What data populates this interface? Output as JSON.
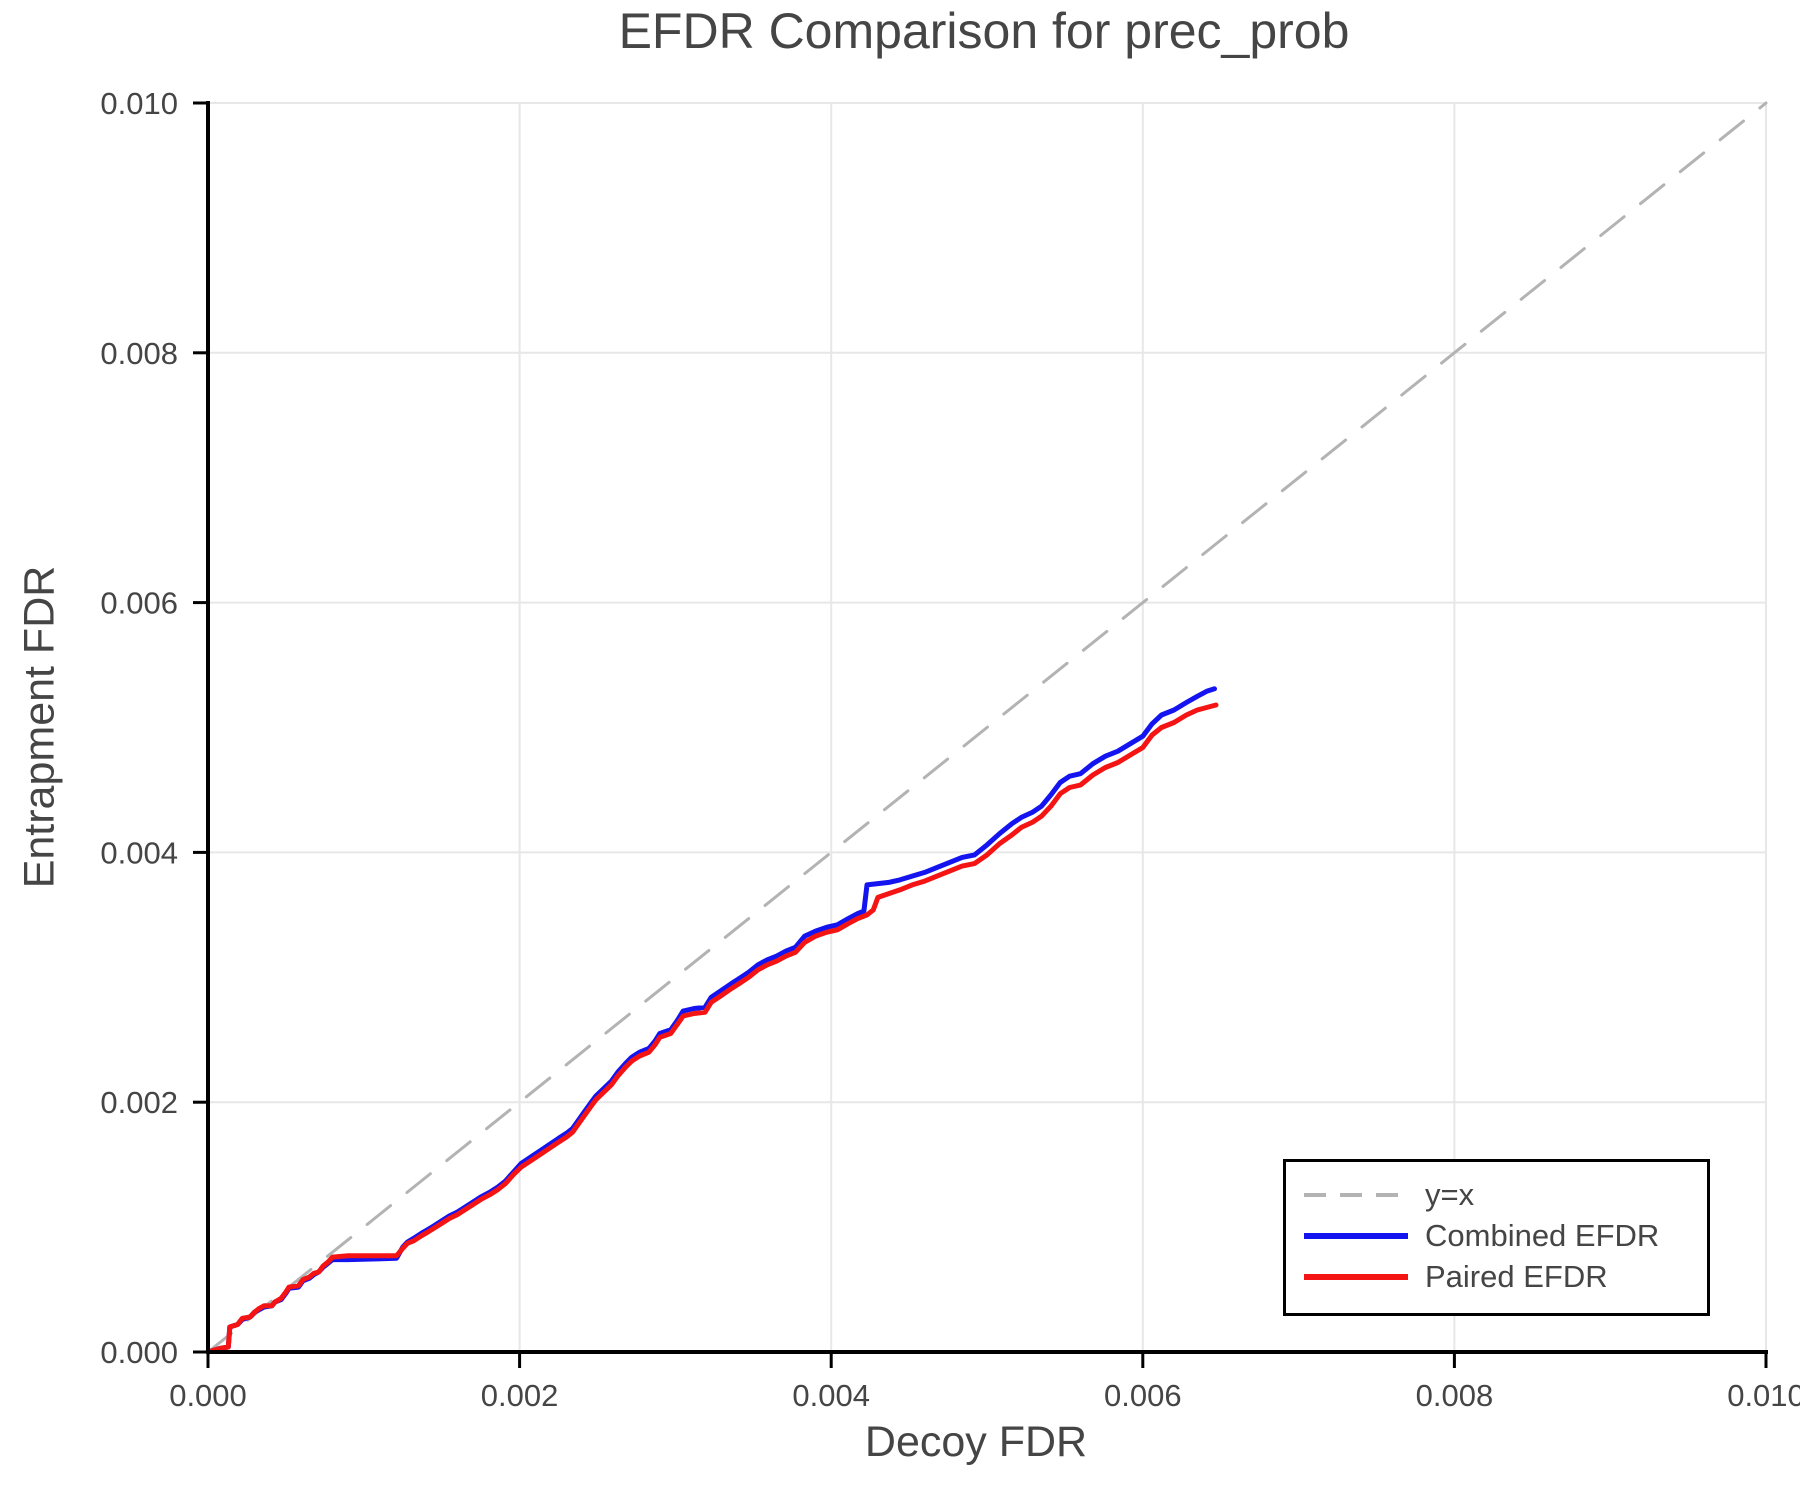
{
  "chart_data": {
    "type": "line",
    "title": "EFDR Comparison for prec_prob",
    "xlabel": "Decoy FDR",
    "ylabel": "Entrapment FDR",
    "xlim": [
      0,
      0.01
    ],
    "ylim": [
      0,
      0.01
    ],
    "x_ticks": [
      0,
      0.002,
      0.004,
      0.006,
      0.008,
      0.01
    ],
    "y_ticks": [
      0,
      0.002,
      0.004,
      0.006,
      0.008,
      0.01
    ],
    "tick_labels": [
      "0.000",
      "0.002",
      "0.004",
      "0.006",
      "0.008",
      "0.010"
    ],
    "grid": true,
    "legend_position": "lower right",
    "colors": {
      "reference": "#b3b3b3",
      "combined": "#1414f0",
      "paired": "#f51414",
      "gridline": "#e7e7e7",
      "spine": "#000000",
      "text": "#454545"
    },
    "series": [
      {
        "name": "y=x",
        "role": "reference",
        "style": "dashed",
        "color": "#b3b3b3",
        "points": [
          [
            0,
            0
          ],
          [
            0.01,
            0.01
          ]
        ]
      },
      {
        "name": "Combined EFDR",
        "role": "data",
        "style": "solid",
        "color": "#1414f0",
        "points": [
          [
            0.0,
            0.0
          ],
          [
            8e-05,
            3e-05
          ],
          [
            0.00013,
            4e-05
          ],
          [
            0.00014,
            0.0002
          ],
          [
            0.00019,
            0.00022
          ],
          [
            0.00022,
            0.00026
          ],
          [
            0.00027,
            0.00028
          ],
          [
            0.0003,
            0.00032
          ],
          [
            0.00033,
            0.00034
          ],
          [
            0.00036,
            0.00036
          ],
          [
            0.00041,
            0.00037
          ],
          [
            0.00043,
            0.0004
          ],
          [
            0.00047,
            0.00042
          ],
          [
            0.0005,
            0.00047
          ],
          [
            0.00052,
            0.00051
          ],
          [
            0.00058,
            0.00052
          ],
          [
            0.00061,
            0.00057
          ],
          [
            0.00065,
            0.00059
          ],
          [
            0.00068,
            0.00062
          ],
          [
            0.00071,
            0.00064
          ],
          [
            0.00074,
            0.00068
          ],
          [
            0.00077,
            0.00071
          ],
          [
            0.0008,
            0.00074
          ],
          [
            0.0009,
            0.00074
          ],
          [
            0.00121,
            0.00075
          ],
          [
            0.00125,
            0.00084
          ],
          [
            0.00128,
            0.00088
          ],
          [
            0.00132,
            0.00091
          ],
          [
            0.00137,
            0.00095
          ],
          [
            0.00141,
            0.00098
          ],
          [
            0.00145,
            0.00101
          ],
          [
            0.0015,
            0.00105
          ],
          [
            0.00155,
            0.00109
          ],
          [
            0.0016,
            0.00112
          ],
          [
            0.00165,
            0.00116
          ],
          [
            0.0017,
            0.0012
          ],
          [
            0.00175,
            0.00124
          ],
          [
            0.00181,
            0.00128
          ],
          [
            0.00186,
            0.00132
          ],
          [
            0.00191,
            0.00137
          ],
          [
            0.00196,
            0.00144
          ],
          [
            0.00201,
            0.00151
          ],
          [
            0.00207,
            0.00156
          ],
          [
            0.00213,
            0.00161
          ],
          [
            0.00219,
            0.00166
          ],
          [
            0.00225,
            0.00171
          ],
          [
            0.0023,
            0.00175
          ],
          [
            0.00234,
            0.00179
          ],
          [
            0.00238,
            0.00186
          ],
          [
            0.00242,
            0.00193
          ],
          [
            0.00246,
            0.002
          ],
          [
            0.00249,
            0.00205
          ],
          [
            0.00254,
            0.00211
          ],
          [
            0.00259,
            0.00217
          ],
          [
            0.00263,
            0.00224
          ],
          [
            0.00268,
            0.00231
          ],
          [
            0.00272,
            0.00236
          ],
          [
            0.00277,
            0.0024
          ],
          [
            0.00283,
            0.00243
          ],
          [
            0.00287,
            0.00249
          ],
          [
            0.0029,
            0.00255
          ],
          [
            0.00297,
            0.00258
          ],
          [
            0.00301,
            0.00265
          ],
          [
            0.00305,
            0.00273
          ],
          [
            0.00312,
            0.00275
          ],
          [
            0.00319,
            0.00276
          ],
          [
            0.00323,
            0.00284
          ],
          [
            0.00329,
            0.00289
          ],
          [
            0.00336,
            0.00295
          ],
          [
            0.00341,
            0.00299
          ],
          [
            0.00347,
            0.00304
          ],
          [
            0.00353,
            0.0031
          ],
          [
            0.00359,
            0.00314
          ],
          [
            0.00365,
            0.00317
          ],
          [
            0.00371,
            0.00321
          ],
          [
            0.00377,
            0.00324
          ],
          [
            0.00383,
            0.00333
          ],
          [
            0.0039,
            0.00337
          ],
          [
            0.00397,
            0.0034
          ],
          [
            0.00404,
            0.00342
          ],
          [
            0.00411,
            0.00347
          ],
          [
            0.00417,
            0.00351
          ],
          [
            0.00421,
            0.00353
          ],
          [
            0.00423,
            0.00374
          ],
          [
            0.0043,
            0.00375
          ],
          [
            0.00437,
            0.00376
          ],
          [
            0.00444,
            0.00378
          ],
          [
            0.00452,
            0.00381
          ],
          [
            0.0046,
            0.00384
          ],
          [
            0.00468,
            0.00388
          ],
          [
            0.00476,
            0.00392
          ],
          [
            0.00484,
            0.00396
          ],
          [
            0.00492,
            0.00398
          ],
          [
            0.005,
            0.00406
          ],
          [
            0.00508,
            0.00415
          ],
          [
            0.00516,
            0.00423
          ],
          [
            0.00522,
            0.00428
          ],
          [
            0.00529,
            0.00432
          ],
          [
            0.00535,
            0.00437
          ],
          [
            0.00541,
            0.00446
          ],
          [
            0.00547,
            0.00456
          ],
          [
            0.00553,
            0.00461
          ],
          [
            0.0056,
            0.00463
          ],
          [
            0.00568,
            0.00471
          ],
          [
            0.00576,
            0.00477
          ],
          [
            0.00584,
            0.00481
          ],
          [
            0.00592,
            0.00487
          ],
          [
            0.006,
            0.00493
          ],
          [
            0.00606,
            0.00503
          ],
          [
            0.00612,
            0.0051
          ],
          [
            0.0062,
            0.00514
          ],
          [
            0.00628,
            0.0052
          ],
          [
            0.00635,
            0.00525
          ],
          [
            0.00641,
            0.00529
          ],
          [
            0.00646,
            0.00531
          ]
        ]
      },
      {
        "name": "Paired EFDR",
        "role": "data",
        "style": "solid",
        "color": "#f51414",
        "points": [
          [
            0.0,
            0.0
          ],
          [
            8e-05,
            3e-05
          ],
          [
            0.00013,
            4e-05
          ],
          [
            0.00014,
            0.0002
          ],
          [
            0.00019,
            0.00022
          ],
          [
            0.00022,
            0.00027
          ],
          [
            0.00027,
            0.00028
          ],
          [
            0.0003,
            0.00032
          ],
          [
            0.00033,
            0.00035
          ],
          [
            0.00036,
            0.00037
          ],
          [
            0.00041,
            0.00037
          ],
          [
            0.00043,
            0.0004
          ],
          [
            0.00047,
            0.00043
          ],
          [
            0.0005,
            0.00048
          ],
          [
            0.00052,
            0.00052
          ],
          [
            0.00058,
            0.00053
          ],
          [
            0.00061,
            0.00058
          ],
          [
            0.00065,
            0.0006
          ],
          [
            0.00068,
            0.00063
          ],
          [
            0.00071,
            0.00064
          ],
          [
            0.00074,
            0.00069
          ],
          [
            0.00077,
            0.00072
          ],
          [
            0.0008,
            0.00076
          ],
          [
            0.0009,
            0.00077
          ],
          [
            0.00121,
            0.00077
          ],
          [
            0.00125,
            0.00083
          ],
          [
            0.00128,
            0.00087
          ],
          [
            0.00132,
            0.00089
          ],
          [
            0.00137,
            0.00093
          ],
          [
            0.00141,
            0.00096
          ],
          [
            0.00145,
            0.00099
          ],
          [
            0.0015,
            0.00103
          ],
          [
            0.00155,
            0.00107
          ],
          [
            0.0016,
            0.0011
          ],
          [
            0.00165,
            0.00114
          ],
          [
            0.0017,
            0.00118
          ],
          [
            0.00175,
            0.00122
          ],
          [
            0.00181,
            0.00126
          ],
          [
            0.00186,
            0.0013
          ],
          [
            0.00191,
            0.00135
          ],
          [
            0.00196,
            0.00142
          ],
          [
            0.00201,
            0.00148
          ],
          [
            0.00207,
            0.00153
          ],
          [
            0.00213,
            0.00158
          ],
          [
            0.00219,
            0.00163
          ],
          [
            0.00225,
            0.00168
          ],
          [
            0.0023,
            0.00172
          ],
          [
            0.00234,
            0.00176
          ],
          [
            0.00238,
            0.00183
          ],
          [
            0.00242,
            0.0019
          ],
          [
            0.00246,
            0.00197
          ],
          [
            0.00249,
            0.00202
          ],
          [
            0.00254,
            0.00208
          ],
          [
            0.00259,
            0.00214
          ],
          [
            0.00263,
            0.00221
          ],
          [
            0.00268,
            0.00228
          ],
          [
            0.00272,
            0.00233
          ],
          [
            0.00277,
            0.00237
          ],
          [
            0.00283,
            0.0024
          ],
          [
            0.00287,
            0.00246
          ],
          [
            0.0029,
            0.00252
          ],
          [
            0.00297,
            0.00255
          ],
          [
            0.00301,
            0.00262
          ],
          [
            0.00305,
            0.00269
          ],
          [
            0.00312,
            0.00271
          ],
          [
            0.00319,
            0.00272
          ],
          [
            0.00323,
            0.0028
          ],
          [
            0.00329,
            0.00285
          ],
          [
            0.00336,
            0.00291
          ],
          [
            0.00341,
            0.00295
          ],
          [
            0.00347,
            0.003
          ],
          [
            0.00353,
            0.00306
          ],
          [
            0.00359,
            0.0031
          ],
          [
            0.00365,
            0.00313
          ],
          [
            0.00371,
            0.00317
          ],
          [
            0.00377,
            0.0032
          ],
          [
            0.00383,
            0.00328
          ],
          [
            0.0039,
            0.00333
          ],
          [
            0.00397,
            0.00336
          ],
          [
            0.00404,
            0.00338
          ],
          [
            0.00411,
            0.00343
          ],
          [
            0.00417,
            0.00347
          ],
          [
            0.00423,
            0.0035
          ],
          [
            0.00427,
            0.00354
          ],
          [
            0.0043,
            0.00364
          ],
          [
            0.00437,
            0.00367
          ],
          [
            0.00444,
            0.0037
          ],
          [
            0.00452,
            0.00374
          ],
          [
            0.0046,
            0.00377
          ],
          [
            0.00468,
            0.00381
          ],
          [
            0.00476,
            0.00385
          ],
          [
            0.00484,
            0.00389
          ],
          [
            0.00492,
            0.00391
          ],
          [
            0.005,
            0.00398
          ],
          [
            0.00508,
            0.00407
          ],
          [
            0.00516,
            0.00414
          ],
          [
            0.00522,
            0.0042
          ],
          [
            0.00529,
            0.00424
          ],
          [
            0.00535,
            0.00429
          ],
          [
            0.00541,
            0.00437
          ],
          [
            0.00547,
            0.00447
          ],
          [
            0.00553,
            0.00452
          ],
          [
            0.0056,
            0.00454
          ],
          [
            0.00568,
            0.00462
          ],
          [
            0.00576,
            0.00468
          ],
          [
            0.00584,
            0.00472
          ],
          [
            0.00592,
            0.00478
          ],
          [
            0.006,
            0.00484
          ],
          [
            0.00606,
            0.00494
          ],
          [
            0.00612,
            0.005
          ],
          [
            0.0062,
            0.00504
          ],
          [
            0.00628,
            0.0051
          ],
          [
            0.00635,
            0.00514
          ],
          [
            0.00641,
            0.00516
          ],
          [
            0.00647,
            0.00518
          ]
        ]
      }
    ]
  },
  "legend": {
    "items": [
      {
        "label": "y=x"
      },
      {
        "label": "Combined EFDR"
      },
      {
        "label": "Paired EFDR"
      }
    ]
  }
}
